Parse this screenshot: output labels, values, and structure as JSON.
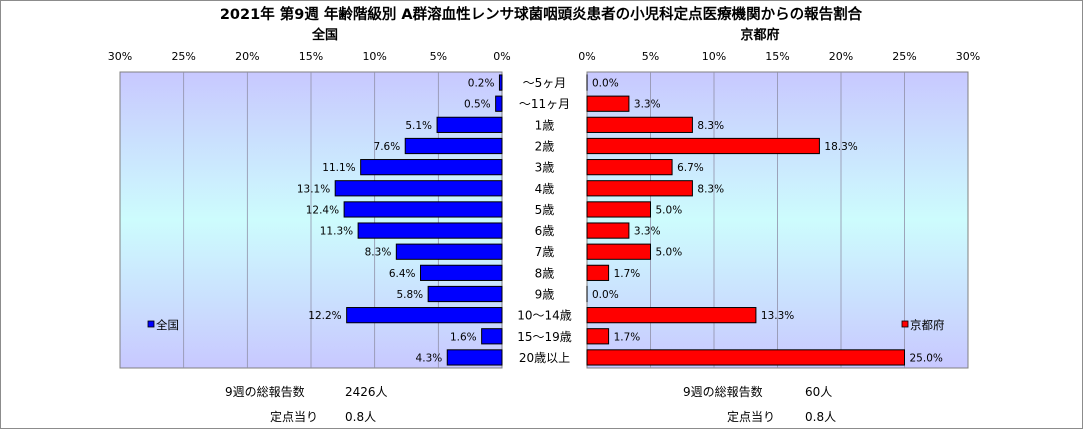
{
  "title": "2021年 第9週 年齢階級別 A群溶血性レンサ球菌咽頭炎患者の小児科定点医療機関からの報告割合",
  "colors": {
    "national": "#0000ff",
    "kyoto": "#ff0000",
    "plot_bg_top": "#c8c8ff",
    "plot_bg_mid": "#cdfcfd",
    "grid": "#9090a8"
  },
  "chart_data": [
    {
      "type": "bar",
      "orientation": "horizontal",
      "direction": "right-to-left",
      "title": "全国",
      "legend": {
        "label": "全国",
        "placement": "bottom-left"
      },
      "categories": [
        "～5ヶ月",
        "～11ヶ月",
        "1歳",
        "2歳",
        "3歳",
        "4歳",
        "5歳",
        "6歳",
        "7歳",
        "8歳",
        "9歳",
        "10～14歳",
        "15～19歳",
        "20歳以上"
      ],
      "series": [
        {
          "name": "全国",
          "values": [
            0.2,
            0.5,
            5.1,
            7.6,
            11.1,
            13.1,
            12.4,
            11.3,
            8.3,
            6.4,
            5.8,
            12.2,
            1.6,
            4.3
          ]
        }
      ],
      "value_labels": [
        "0.2%",
        "0.5%",
        "5.1%",
        "7.6%",
        "11.1%",
        "13.1%",
        "12.4%",
        "11.3%",
        "8.3%",
        "6.4%",
        "5.8%",
        "12.2%",
        "1.6%",
        "4.3%"
      ],
      "xlim": [
        0,
        30
      ],
      "ticks": [
        0,
        5,
        10,
        15,
        20,
        25,
        30
      ],
      "tick_labels": [
        "0%",
        "5%",
        "10%",
        "15%",
        "20%",
        "25%",
        "30%"
      ],
      "grid": true
    },
    {
      "type": "bar",
      "orientation": "horizontal",
      "direction": "left-to-right",
      "title": "京都府",
      "legend": {
        "label": "京都府",
        "placement": "bottom-right"
      },
      "categories": [
        "～5ヶ月",
        "～11ヶ月",
        "1歳",
        "2歳",
        "3歳",
        "4歳",
        "5歳",
        "6歳",
        "7歳",
        "8歳",
        "9歳",
        "10～14歳",
        "15～19歳",
        "20歳以上"
      ],
      "series": [
        {
          "name": "京都府",
          "values": [
            0.0,
            3.3,
            8.3,
            18.3,
            6.7,
            8.3,
            5.0,
            3.3,
            5.0,
            1.7,
            0.0,
            13.3,
            1.7,
            25.0
          ]
        }
      ],
      "value_labels": [
        "0.0%",
        "3.3%",
        "8.3%",
        "18.3%",
        "6.7%",
        "8.3%",
        "5.0%",
        "3.3%",
        "5.0%",
        "1.7%",
        "0.0%",
        "13.3%",
        "1.7%",
        "25.0%"
      ],
      "xlim": [
        0,
        30
      ],
      "ticks": [
        0,
        5,
        10,
        15,
        20,
        25,
        30
      ],
      "tick_labels": [
        "0%",
        "5%",
        "10%",
        "15%",
        "20%",
        "25%",
        "30%"
      ],
      "grid": true
    }
  ],
  "summary": {
    "national": {
      "total_label": "9週の総報告数",
      "total_value": "2426人",
      "per_label": "定点当り",
      "per_value": "0.8人"
    },
    "kyoto": {
      "total_label": "9週の総報告数",
      "total_value": "60人",
      "per_label": "定点当り",
      "per_value": "0.8人"
    }
  }
}
